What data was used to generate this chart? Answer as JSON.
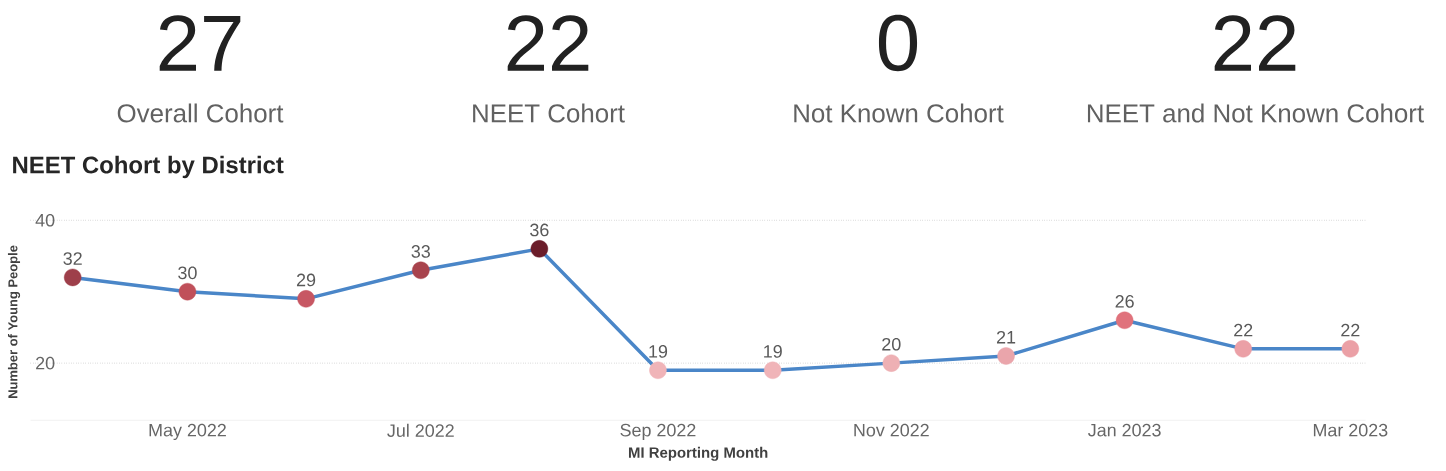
{
  "chart_data": [
    {
      "type": "other",
      "categories": [
        "Overall Cohort",
        "NEET Cohort",
        "Not Known Cohort",
        "NEET and Not Known Cohort"
      ],
      "values": [
        27,
        22,
        0,
        22
      ],
      "data_labels": true
    },
    {
      "type": "line",
      "title": "NEET Cohort by District",
      "xlabel": "MI Reporting Month",
      "ylabel": "Number of Young People",
      "x": [
        "2022-04",
        "2022-05",
        "2022-06",
        "2022-07",
        "2022-08",
        "2022-09",
        "2022-10",
        "2022-11",
        "2022-12",
        "2023-01",
        "2023-02",
        "2023-03"
      ],
      "series": [
        {
          "color": "#4a86c8",
          "values": [
            32,
            30,
            29,
            33,
            36,
            19,
            19,
            20,
            21,
            26,
            22,
            22
          ],
          "colors": [
            "#9e3f4a",
            "#c0505a",
            "#c75763",
            "#a8434d",
            "#6b1d2a",
            "#f0b4b8",
            "#f0b4b8",
            "#eeb0b4",
            "#eaa5ab",
            "#e0727c",
            "#eba0a6",
            "#eba0a6"
          ]
        }
      ],
      "xlim": [
        "2022-03-21",
        "2023-03-05"
      ],
      "ylim": [
        12,
        40
      ],
      "yticks": [
        20,
        40
      ],
      "xticks": [
        {
          "value": "2022-05",
          "label": "May 2022"
        },
        {
          "value": "2022-07",
          "label": "Jul 2022"
        },
        {
          "value": "2022-09",
          "label": "Sep 2022"
        },
        {
          "value": "2022-11",
          "label": "Nov 2022"
        },
        {
          "value": "2023-01",
          "label": "Jan 2023"
        },
        {
          "value": "2023-03",
          "label": "Mar 2023"
        }
      ],
      "grid": "y",
      "marker": "circle",
      "line_style": "solid",
      "data_labels": true
    }
  ]
}
